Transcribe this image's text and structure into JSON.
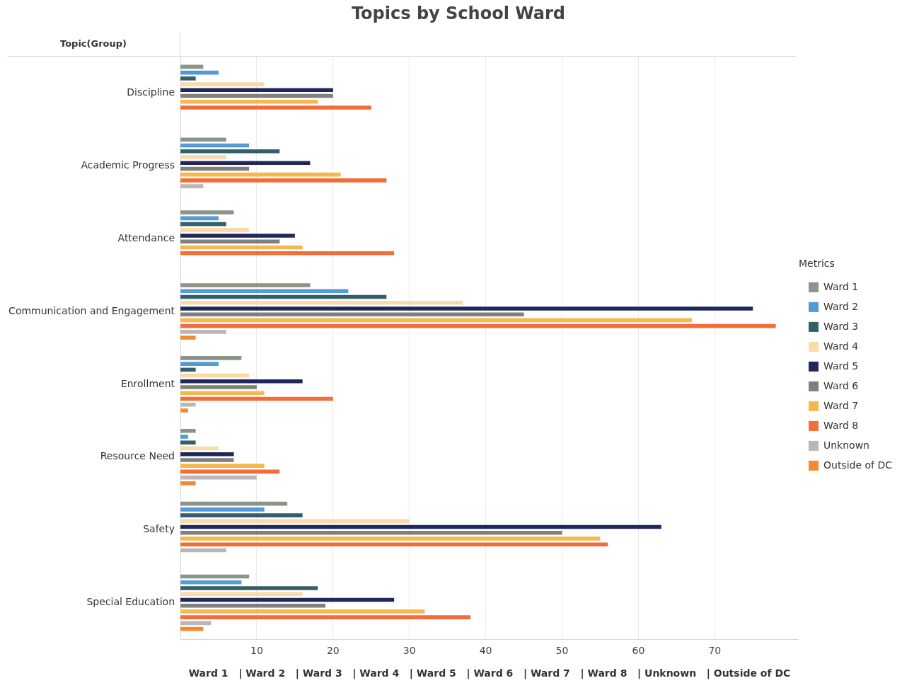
{
  "chart_data": {
    "type": "bar",
    "orientation": "horizontal",
    "title": "Topics by School Ward",
    "xlabel": "Ward 1   | Ward 2   | Ward 3   | Ward 4   | Ward 5   | Ward 6   | Ward 7   | Ward 8   | Unknown   | Outside of DC",
    "ylabel": "Topic(Group)",
    "legend_title": "Metrics",
    "categories": [
      "Discipline",
      "Academic Progress",
      "Attendance",
      "Communication and Engagement",
      "Enrollment",
      "Resource Need",
      "Safety",
      "Special Education"
    ],
    "series": [
      {
        "name": "Ward 1",
        "color": "#8a9487",
        "values": [
          3,
          6,
          7,
          17,
          8,
          2,
          14,
          9
        ]
      },
      {
        "name": "Ward 2",
        "color": "#559bd3",
        "values": [
          5,
          9,
          5,
          22,
          5,
          1,
          11,
          8
        ]
      },
      {
        "name": "Ward 3",
        "color": "#335f6b",
        "values": [
          2,
          13,
          6,
          27,
          2,
          2,
          16,
          18
        ]
      },
      {
        "name": "Ward 4",
        "color": "#f9daa8",
        "values": [
          11,
          6,
          9,
          37,
          9,
          5,
          30,
          16
        ]
      },
      {
        "name": "Ward 5",
        "color": "#20285a",
        "values": [
          20,
          17,
          15,
          75,
          16,
          7,
          63,
          28
        ]
      },
      {
        "name": "Ward 6",
        "color": "#7f7f7f",
        "values": [
          20,
          9,
          13,
          45,
          10,
          7,
          50,
          19
        ]
      },
      {
        "name": "Ward 7",
        "color": "#f5b84c",
        "values": [
          18,
          21,
          16,
          67,
          11,
          11,
          55,
          32
        ]
      },
      {
        "name": "Ward 8",
        "color": "#f26d3a",
        "values": [
          25,
          27,
          28,
          78,
          20,
          13,
          56,
          38
        ]
      },
      {
        "name": "Unknown",
        "color": "#b8b8b8",
        "values": [
          null,
          3,
          null,
          6,
          2,
          10,
          6,
          4
        ]
      },
      {
        "name": "Outside of DC",
        "color": "#f28a32",
        "values": [
          null,
          null,
          null,
          2,
          1,
          2,
          null,
          3
        ]
      }
    ],
    "xlim": [
      0,
      81
    ],
    "xticks": [
      10,
      20,
      30,
      40,
      50,
      60,
      70
    ],
    "grid": "x",
    "legend": "right"
  }
}
